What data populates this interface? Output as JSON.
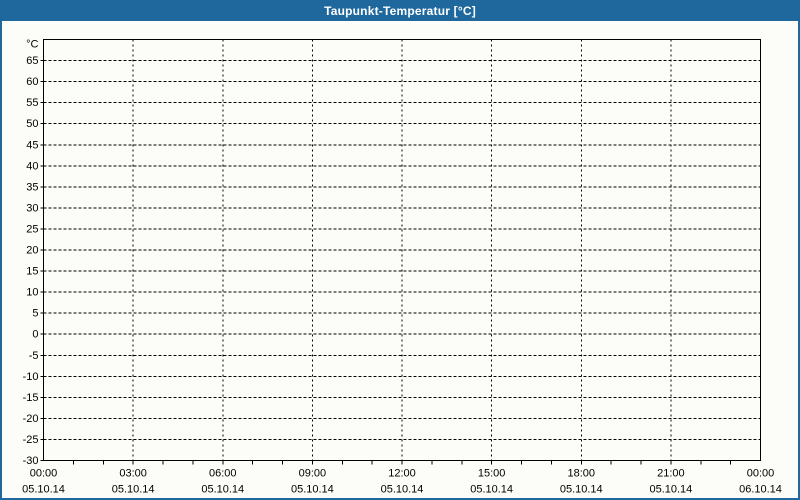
{
  "window": {
    "title": "Taupunkt-Temperatur [°C]"
  },
  "colors": {
    "frame": "#1F689E",
    "titlebar": "#1F689E",
    "title_text": "#FFFFFF",
    "content_bg": "#FCFDF9",
    "grid": "#000000",
    "axis": "#000000",
    "tick_text": "#000000"
  },
  "chart_data": {
    "type": "line",
    "title": "Taupunkt-Temperatur [°C]",
    "xlabel": "",
    "ylabel": "°C",
    "ylim": [
      -30,
      70
    ],
    "ytick_step": 5,
    "ytick_labels": [
      "65",
      "60",
      "55",
      "50",
      "45",
      "40",
      "35",
      "30",
      "25",
      "20",
      "15",
      "10",
      "5",
      "0",
      "-5",
      "-10",
      "-15",
      "-20",
      "-25",
      "-30"
    ],
    "y_unit_label": "°C",
    "x_ticks": [
      {
        "time": "00:00",
        "date": "05.10.14"
      },
      {
        "time": "03:00",
        "date": "05.10.14"
      },
      {
        "time": "06:00",
        "date": "05.10.14"
      },
      {
        "time": "09:00",
        "date": "05.10.14"
      },
      {
        "time": "12:00",
        "date": "05.10.14"
      },
      {
        "time": "15:00",
        "date": "05.10.14"
      },
      {
        "time": "18:00",
        "date": "05.10.14"
      },
      {
        "time": "21:00",
        "date": "05.10.14"
      },
      {
        "time": "00:00",
        "date": "06.10.14"
      }
    ],
    "x_minor_divisions": 24,
    "grid": true,
    "legend": false,
    "series": []
  }
}
